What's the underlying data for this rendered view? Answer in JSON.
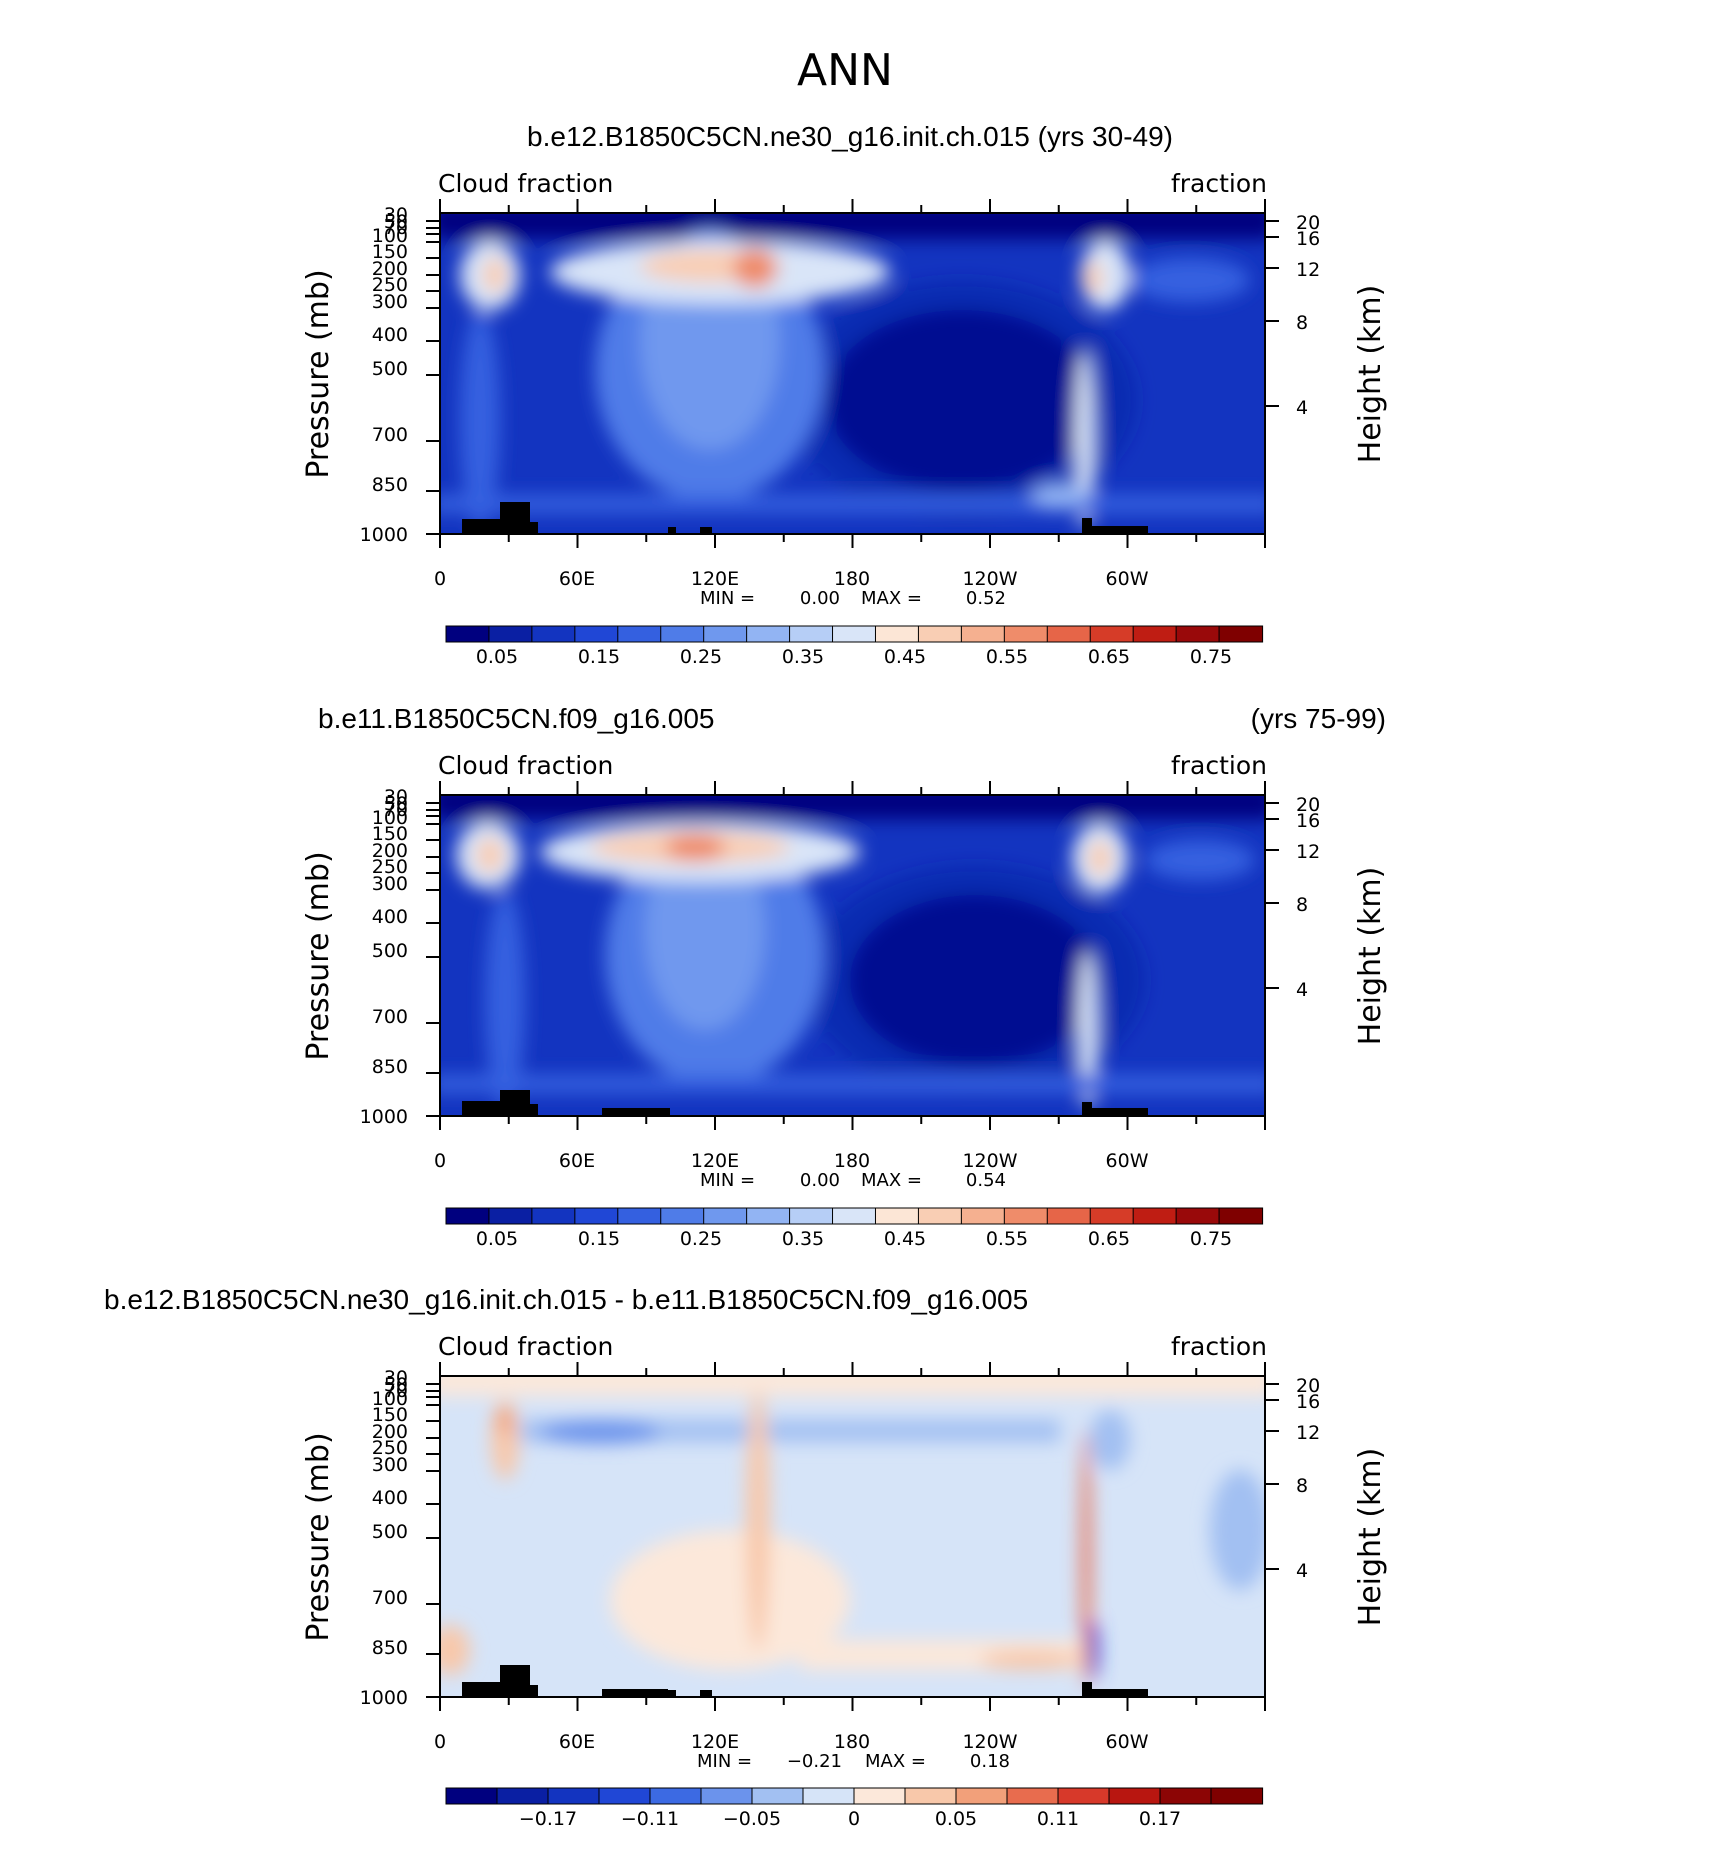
{
  "figure": {
    "title": "ANN"
  },
  "colors": {
    "positive_scale": [
      "#00007f",
      "#0a1fa3",
      "#1334c0",
      "#2047d6",
      "#3460e0",
      "#4f7ce8",
      "#6f98ee",
      "#92b4f3",
      "#b6cef6",
      "#d9e5f8",
      "#fce6d6",
      "#f9ceb4",
      "#f5b090",
      "#ef8c6a",
      "#e66548",
      "#d63c28",
      "#bf1d13",
      "#99090a",
      "#7f0000"
    ],
    "diff_scale": [
      "#00007f",
      "#0a1fa3",
      "#1334c0",
      "#2047d6",
      "#3c6ae3",
      "#6b93ec",
      "#a2c0f2",
      "#d6e4f8",
      "#fce8da",
      "#f8c8aa",
      "#f2a07a",
      "#e86c4e",
      "#d7392a",
      "#b81610",
      "#8c0505",
      "#7f0000"
    ],
    "land": "#000000"
  },
  "chart_data": [
    {
      "type": "heatmap",
      "title": "b.e12.B1850C5CN.ne30_g16.init.ch.015 (yrs 30-49)",
      "left_label": "Cloud fraction",
      "right_label": "fraction",
      "ylabel": "Pressure (mb)",
      "ylabel_right": "Height (km)",
      "x_ticks": [
        "0",
        "60E",
        "120E",
        "180",
        "120W",
        "60W"
      ],
      "y_ticks": [
        "30",
        "50",
        "70",
        "100",
        "150",
        "200",
        "250",
        "300",
        "400",
        "500",
        "700",
        "850",
        "1000"
      ],
      "y_right_ticks": [
        "20",
        "16",
        "12",
        "8",
        "4"
      ],
      "min_label": "MIN =",
      "min_value": "0.00",
      "max_label": "MAX =",
      "max_value": "0.52",
      "colorbar_labels": [
        "0.05",
        "0.15",
        "0.25",
        "0.35",
        "0.45",
        "0.55",
        "0.65",
        "0.75"
      ],
      "value_range": [
        0,
        0.52
      ]
    },
    {
      "type": "heatmap",
      "title_left": "b.e11.B1850C5CN.f09_g16.005",
      "title_right": "(yrs 75-99)",
      "left_label": "Cloud fraction",
      "right_label": "fraction",
      "ylabel": "Pressure (mb)",
      "ylabel_right": "Height (km)",
      "x_ticks": [
        "0",
        "60E",
        "120E",
        "180",
        "120W",
        "60W"
      ],
      "y_ticks": [
        "30",
        "50",
        "70",
        "100",
        "150",
        "200",
        "250",
        "300",
        "400",
        "500",
        "700",
        "850",
        "1000"
      ],
      "y_right_ticks": [
        "20",
        "16",
        "12",
        "8",
        "4"
      ],
      "min_label": "MIN =",
      "min_value": "0.00",
      "max_label": "MAX =",
      "max_value": "0.54",
      "colorbar_labels": [
        "0.05",
        "0.15",
        "0.25",
        "0.35",
        "0.45",
        "0.55",
        "0.65",
        "0.75"
      ],
      "value_range": [
        0,
        0.54
      ]
    },
    {
      "type": "heatmap",
      "title": "b.e12.B1850C5CN.ne30_g16.init.ch.015 - b.e11.B1850C5CN.f09_g16.005",
      "left_label": "Cloud fraction",
      "right_label": "fraction",
      "ylabel": "Pressure (mb)",
      "ylabel_right": "Height (km)",
      "x_ticks": [
        "0",
        "60E",
        "120E",
        "180",
        "120W",
        "60W"
      ],
      "y_ticks": [
        "30",
        "50",
        "70",
        "100",
        "150",
        "200",
        "250",
        "300",
        "400",
        "500",
        "700",
        "850",
        "1000"
      ],
      "y_right_ticks": [
        "20",
        "16",
        "12",
        "8",
        "4"
      ],
      "min_label": "MIN =",
      "min_value": "−0.21",
      "max_label": "MAX =",
      "max_value": "0.18",
      "colorbar_labels": [
        "−0.17",
        "−0.11",
        "−0.05",
        "0",
        "0.05",
        "0.11",
        "0.17"
      ],
      "value_range": [
        -0.21,
        0.18
      ]
    }
  ]
}
